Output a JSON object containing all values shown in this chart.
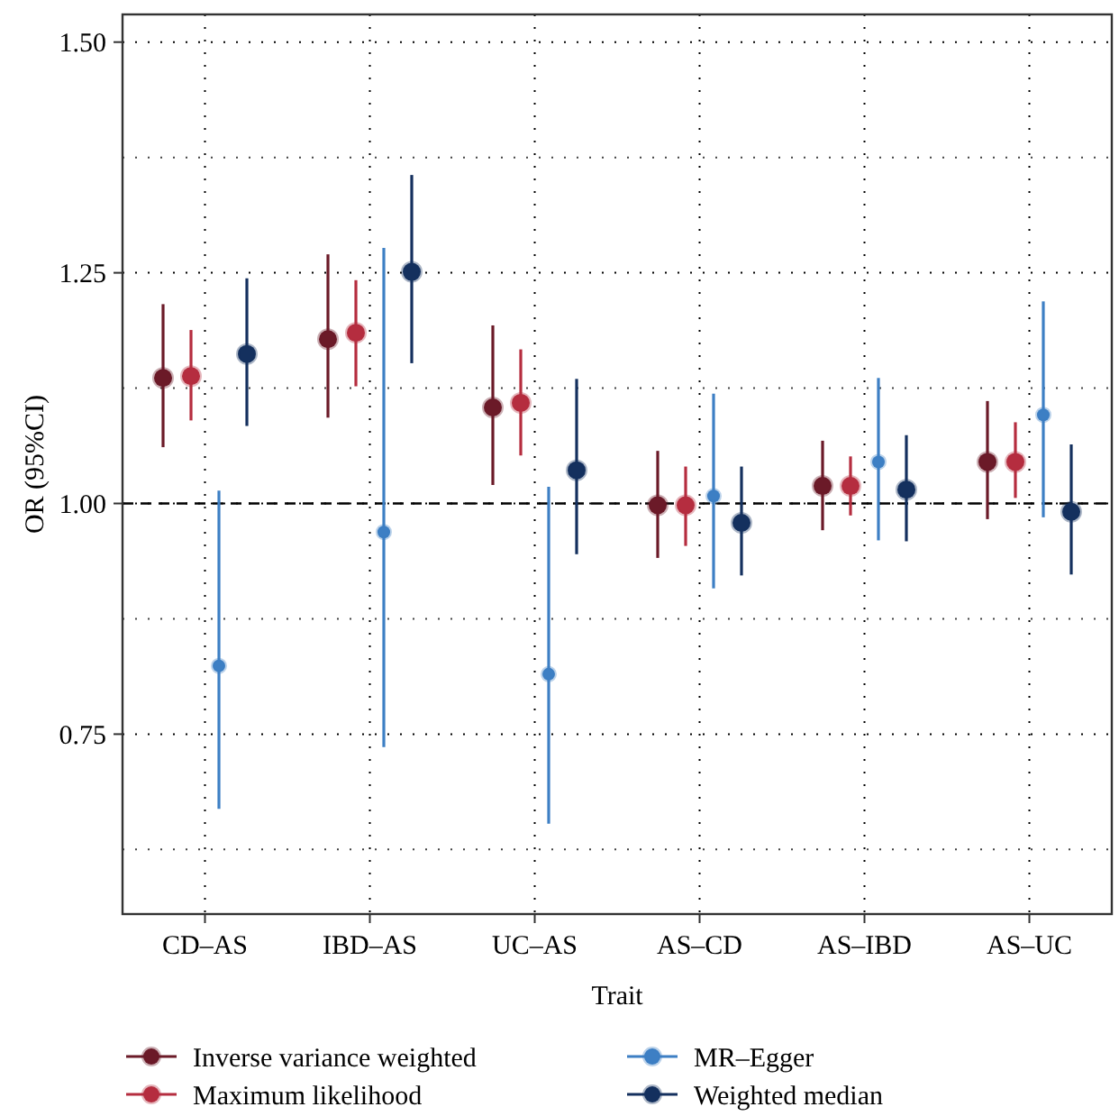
{
  "chart_data": {
    "type": "scatter",
    "xlabel": "Trait",
    "ylabel": "OR (95%CI)",
    "categories": [
      "CD–AS",
      "IBD–AS",
      "UC–AS",
      "AS–CD",
      "AS–IBD",
      "AS–UC"
    ],
    "ylim": [
      0.555,
      1.53
    ],
    "yticks": [
      0.75,
      {
        "value": 1,
        "label": "1.00"
      },
      1.25,
      {
        "value": 1.5,
        "label": "1.50"
      }
    ],
    "grid": true,
    "legend": "bottom",
    "marker": "circle",
    "ref_lines": [
      {
        "axis": "y",
        "value": 1,
        "line_style": "dashed",
        "color": "#000000"
      }
    ],
    "series": [
      {
        "name": "Inverse variance weighted",
        "color": "#6b1a28",
        "values": [
          1.136,
          1.178,
          1.104,
          0.998,
          1.019,
          1.045
        ],
        "errors": [
          [
            1.061,
            1.216
          ],
          [
            1.093,
            1.27
          ],
          [
            1.02,
            1.193
          ],
          [
            0.941,
            1.057
          ],
          [
            0.971,
            1.068
          ],
          [
            0.983,
            1.111
          ]
        ]
      },
      {
        "name": "Maximum likelihood",
        "color": "#b52d3f",
        "values": [
          1.138,
          1.185,
          1.109,
          0.998,
          1.019,
          1.045
        ],
        "errors": [
          [
            1.09,
            1.188
          ],
          [
            1.127,
            1.242
          ],
          [
            1.052,
            1.167
          ],
          [
            0.954,
            1.04
          ],
          [
            0.987,
            1.051
          ],
          [
            1.006,
            1.088
          ]
        ]
      },
      {
        "name": "MR–Egger",
        "color": "#3d7fc4",
        "values": [
          0.824,
          0.969,
          0.815,
          1.008,
          1.045,
          1.096
        ],
        "errors": [
          [
            0.669,
            1.014
          ],
          [
            0.736,
            1.277
          ],
          [
            0.653,
            1.018
          ],
          [
            0.908,
            1.119
          ],
          [
            0.96,
            1.136
          ],
          [
            0.985,
            1.219
          ]
        ]
      },
      {
        "name": "Weighted median",
        "color": "#14305e",
        "values": [
          1.162,
          1.251,
          1.036,
          0.979,
          1.015,
          0.991
        ],
        "errors": [
          [
            1.084,
            1.244
          ],
          [
            1.152,
            1.356
          ],
          [
            0.945,
            1.135
          ],
          [
            0.922,
            1.04
          ],
          [
            0.959,
            1.074
          ],
          [
            0.923,
            1.064
          ]
        ]
      }
    ]
  }
}
